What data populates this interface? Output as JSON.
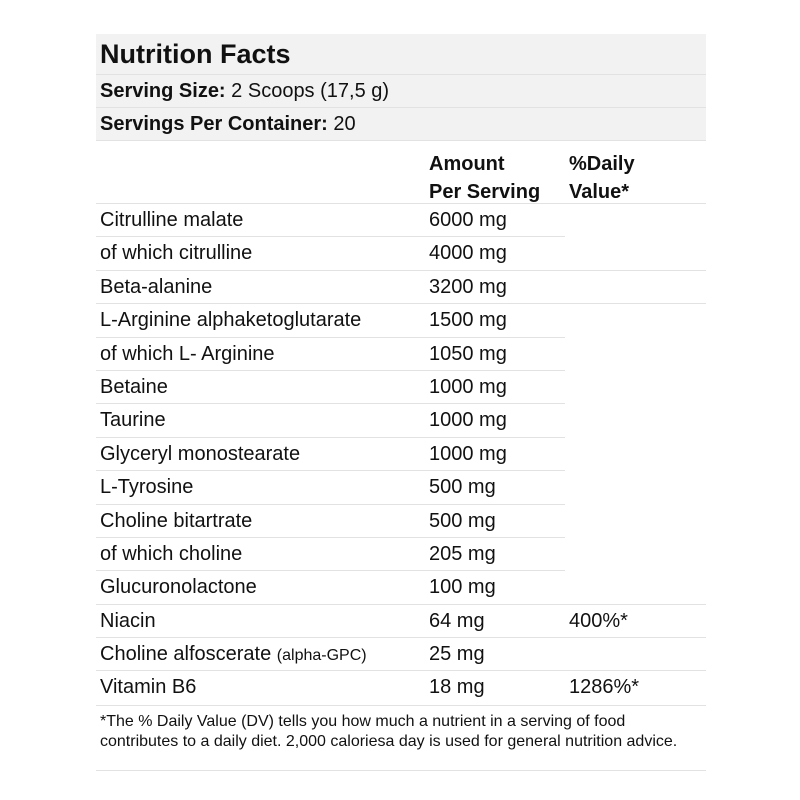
{
  "title": "Nutrition Facts",
  "serving_size": {
    "label": "Serving Size:",
    "value": "2 Scoops (17,5 g)"
  },
  "servings_per_container": {
    "label": "Servings Per Container:",
    "value": "20"
  },
  "columns": {
    "amount_line1": "Amount",
    "amount_line2": "Per Serving",
    "dv_line1": "%Daily",
    "dv_line2": "Value*"
  },
  "nutrients": [
    {
      "name": "Citrulline malate",
      "note": "",
      "amount": "6000 mg",
      "dv": ""
    },
    {
      "name": "of which citrulline",
      "note": "",
      "amount": "4000 mg",
      "dv": ""
    },
    {
      "name": "Beta-alanine",
      "note": "",
      "amount": "3200 mg",
      "dv": ""
    },
    {
      "name": "L-Arginine alphaketoglutarate",
      "note": "",
      "amount": "1500 mg",
      "dv": ""
    },
    {
      "name": "of which L- Arginine",
      "note": "",
      "amount": "1050 mg",
      "dv": ""
    },
    {
      "name": "Betaine",
      "note": "",
      "amount": "1000 mg",
      "dv": ""
    },
    {
      "name": "Taurine",
      "note": "",
      "amount": "1000 mg",
      "dv": ""
    },
    {
      "name": "Glyceryl monostearate",
      "note": "",
      "amount": "1000 mg",
      "dv": ""
    },
    {
      "name": "L-Tyrosine",
      "note": "",
      "amount": "500 mg",
      "dv": ""
    },
    {
      "name": "Choline bitartrate",
      "note": "",
      "amount": "500 mg",
      "dv": ""
    },
    {
      "name": "of which choline",
      "note": "",
      "amount": "205 mg",
      "dv": ""
    },
    {
      "name": "Glucuronolactone",
      "note": "",
      "amount": "100 mg",
      "dv": ""
    },
    {
      "name": "Niacin",
      "note": "",
      "amount": "64 mg",
      "dv": "400%*"
    },
    {
      "name": "Choline alfoscerate",
      "note": "(alpha-GPC)",
      "amount": "25 mg",
      "dv": ""
    },
    {
      "name": "Vitamin B6",
      "note": "",
      "amount": "18 mg",
      "dv": "1286%*"
    }
  ],
  "footnote": "*The % Daily Value (DV) tells you how much a nutrient in a serving of food contributes to a daily diet. 2,000 caloriesa day is used for general nutrition advice."
}
